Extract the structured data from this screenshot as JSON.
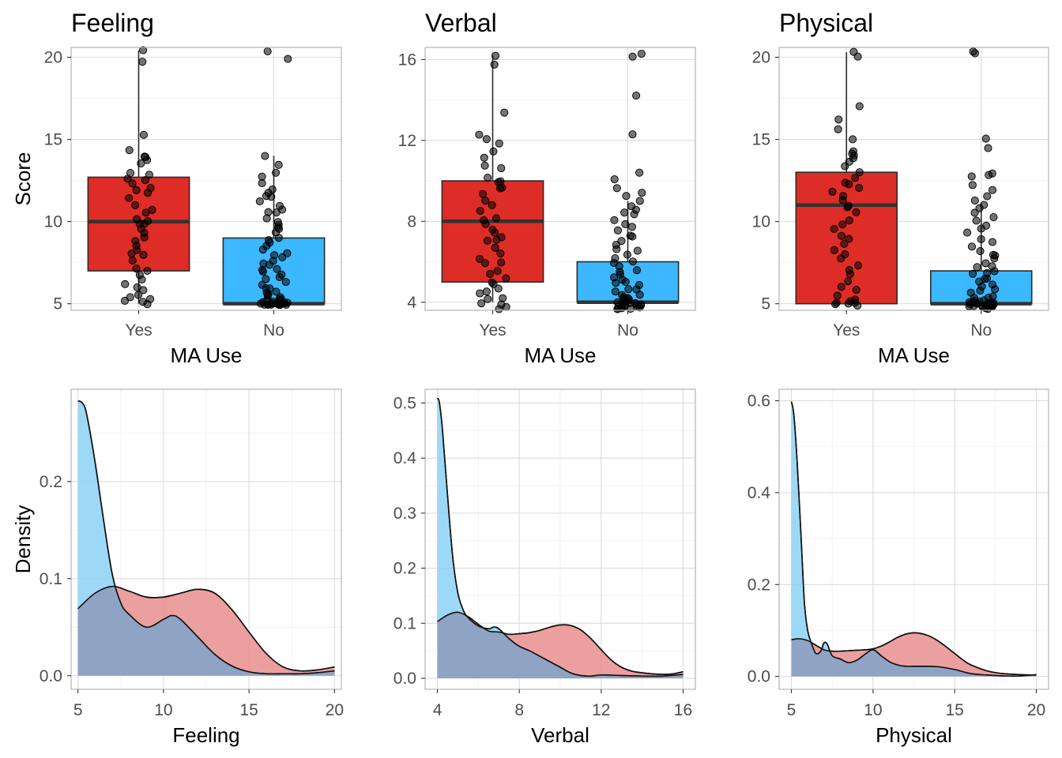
{
  "chart_data": [
    {
      "type": "box",
      "title": "Feeling",
      "xlabel": "MA Use",
      "ylabel": "Score",
      "categories": [
        "Yes",
        "No"
      ],
      "ylim": [
        4.6,
        20.6
      ],
      "yticks": [
        5,
        10,
        15,
        20
      ],
      "yticklabels": [
        "5",
        "10",
        "15",
        "20"
      ],
      "boxes": [
        {
          "category": "Yes",
          "color": "#DE2D26",
          "whisker_low": 5,
          "q1": 7,
          "median": 10,
          "q3": 12.7,
          "whisker_high": 20.4
        },
        {
          "category": "No",
          "color": "#3BB8FF",
          "whisker_low": 5,
          "q1": 5,
          "median": 5,
          "q3": 9,
          "whisker_high": 14
        }
      ],
      "points": [
        {
          "category": "Yes",
          "values": [
            20.4,
            19.8,
            15.3,
            14.4,
            14,
            13.9,
            13.7,
            13.5,
            13,
            12.9,
            12.6,
            12.5,
            12.3,
            12.1,
            11.9,
            11.7,
            11.4,
            11,
            10.7,
            10.5,
            10.2,
            10,
            9.9,
            9.8,
            9.5,
            9.3,
            9,
            8.8,
            8.6,
            8.2,
            8,
            7.9,
            7.6,
            7.1,
            7,
            6.8,
            6.5,
            6.2,
            6,
            5.8,
            5.6,
            5.4,
            5.3,
            5.2,
            5.1,
            5
          ]
        },
        {
          "category": "No",
          "values": [
            20.4,
            19.9,
            14,
            13.5,
            13,
            12.8,
            12.3,
            12,
            11.8,
            11.6,
            11.5,
            11.2,
            11,
            10.8,
            10.6,
            10.5,
            10.2,
            10,
            9.8,
            9.7,
            9.5,
            9.3,
            9,
            8.9,
            8.7,
            8.5,
            8.3,
            8.1,
            8,
            7.8,
            7.6,
            7.5,
            7.3,
            7.1,
            7,
            6.9,
            6.8,
            6.6,
            6.5,
            6.3,
            6.2,
            6,
            5.9,
            5.8,
            5.7,
            5.6,
            5.5,
            5.4,
            5.3,
            5.2,
            5.2,
            5.1,
            5.1,
            5,
            5,
            5,
            5,
            5,
            5,
            5,
            5,
            5,
            5,
            5,
            5,
            5,
            5,
            5,
            5,
            5
          ]
        }
      ]
    },
    {
      "type": "box",
      "title": "Verbal",
      "xlabel": "MA Use",
      "ylabel": "",
      "categories": [
        "Yes",
        "No"
      ],
      "ylim": [
        3.6,
        16.6
      ],
      "yticks": [
        4,
        8,
        12,
        16
      ],
      "yticklabels": [
        "4",
        "8",
        "12",
        "16"
      ],
      "boxes": [
        {
          "category": "Yes",
          "color": "#DE2D26",
          "whisker_low": 4,
          "q1": 5,
          "median": 8,
          "q3": 10,
          "whisker_high": 16.2
        },
        {
          "category": "No",
          "color": "#3BB8FF",
          "whisker_low": 4,
          "q1": 4,
          "median": 4,
          "q3": 6,
          "whisker_high": 9
        }
      ],
      "points": [
        {
          "category": "Yes",
          "values": [
            16.2,
            15.7,
            13.4,
            12.3,
            12.1,
            11.9,
            11.5,
            11.1,
            10.8,
            10.6,
            10.2,
            10,
            9.9,
            9.7,
            9.6,
            9.3,
            9,
            8.8,
            8.5,
            8.2,
            8,
            7.9,
            7.6,
            7.4,
            7.2,
            7.1,
            7,
            6.7,
            6.4,
            6.2,
            6,
            5.9,
            5.6,
            5.4,
            5.2,
            5,
            4.9,
            4.7,
            4.5,
            4.4,
            4.2,
            4.1,
            4,
            3.9,
            3.8,
            3.7
          ]
        },
        {
          "category": "No",
          "values": [
            16.3,
            16.1,
            14.2,
            12.3,
            10.4,
            10.1,
            9.6,
            9.4,
            9.2,
            9,
            8.8,
            8.6,
            8.4,
            8.3,
            8.1,
            7.9,
            7.7,
            7.5,
            7.3,
            7.2,
            7,
            6.8,
            6.6,
            6.5,
            6.4,
            6.2,
            6,
            5.9,
            5.8,
            5.6,
            5.5,
            5.4,
            5.2,
            5.1,
            5,
            4.9,
            4.8,
            4.7,
            4.6,
            4.5,
            4.4,
            4.3,
            4.3,
            4.2,
            4.2,
            4.1,
            4.1,
            4,
            4,
            4,
            4,
            4,
            3.9,
            3.9,
            3.9,
            3.8,
            3.8,
            3.8,
            3.8,
            3.7,
            3.7,
            3.7,
            3.7,
            3.7,
            3.7
          ]
        }
      ]
    },
    {
      "type": "box",
      "title": "Physical",
      "xlabel": "MA Use",
      "ylabel": "",
      "categories": [
        "Yes",
        "No"
      ],
      "ylim": [
        4.6,
        20.6
      ],
      "yticks": [
        5,
        10,
        15,
        20
      ],
      "yticklabels": [
        "5",
        "10",
        "15",
        "20"
      ],
      "boxes": [
        {
          "category": "Yes",
          "color": "#DE2D26",
          "whisker_low": 5,
          "q1": 5,
          "median": 11,
          "q3": 13,
          "whisker_high": 20.3
        },
        {
          "category": "No",
          "color": "#3BB8FF",
          "whisker_low": 5,
          "q1": 5,
          "median": 5,
          "q3": 7,
          "whisker_high": 11.1
        }
      ],
      "points": [
        {
          "category": "Yes",
          "values": [
            20.3,
            20,
            17,
            16.2,
            15.6,
            15,
            14.3,
            14.2,
            14,
            13.8,
            13.6,
            13.3,
            13,
            12.7,
            12.4,
            12.2,
            12,
            11.8,
            11.5,
            11.3,
            11,
            10.8,
            10.5,
            10,
            9.8,
            9.5,
            9.2,
            9,
            8.7,
            8.3,
            8,
            7.8,
            7.3,
            7,
            6.8,
            6.3,
            6,
            5.8,
            5.5,
            5.3,
            5.2,
            5.1,
            5,
            5,
            5,
            4.9
          ]
        },
        {
          "category": "No",
          "values": [
            20.4,
            20.3,
            15.1,
            14.4,
            13,
            12.8,
            12.7,
            12.2,
            11.9,
            11.5,
            11.3,
            11,
            10.8,
            10.5,
            10.3,
            10,
            9.8,
            9.6,
            9.3,
            9,
            8.8,
            8.5,
            8.2,
            8,
            7.9,
            7.7,
            7.5,
            7.3,
            7.2,
            7,
            6.9,
            6.8,
            6.6,
            6.5,
            6.4,
            6.2,
            6,
            5.9,
            5.8,
            5.7,
            5.5,
            5.4,
            5.3,
            5.2,
            5.2,
            5.1,
            5.1,
            5.1,
            5,
            5,
            5,
            5,
            5,
            5,
            5,
            5,
            4.9,
            4.9,
            4.9,
            4.9,
            4.8,
            4.8,
            4.8,
            4.8,
            4.8,
            4.7,
            4.7
          ]
        }
      ]
    },
    {
      "type": "area",
      "title": "",
      "xlabel": "Feeling",
      "ylabel": "Density",
      "xlim": [
        4.6,
        20.4
      ],
      "ylim": [
        -0.014,
        0.295
      ],
      "xticks": [
        5,
        10,
        15,
        20
      ],
      "xticklabels": [
        "5",
        "10",
        "15",
        "20"
      ],
      "yticks": [
        0,
        0.1,
        0.2
      ],
      "yticklabels": [
        "0.0",
        "0.1",
        "0.2"
      ],
      "series": [
        {
          "group": "Yes",
          "color": "#E88A8A",
          "x": [
            5,
            6,
            7,
            8,
            9,
            10,
            11,
            12,
            13,
            14,
            15,
            16,
            17,
            18,
            19,
            20
          ],
          "y": [
            0.069,
            0.085,
            0.092,
            0.087,
            0.081,
            0.081,
            0.085,
            0.089,
            0.085,
            0.068,
            0.045,
            0.023,
            0.009,
            0.005,
            0.006,
            0.009
          ]
        },
        {
          "group": "No",
          "color": "#87CFF5",
          "x": [
            5,
            5.25,
            5.5,
            6,
            6.5,
            7,
            7.5,
            8,
            9,
            10,
            10.5,
            11,
            12,
            13,
            14,
            15,
            16,
            17,
            18,
            19,
            20
          ],
          "y": [
            0.283,
            0.281,
            0.27,
            0.22,
            0.16,
            0.105,
            0.075,
            0.063,
            0.05,
            0.058,
            0.062,
            0.058,
            0.04,
            0.022,
            0.01,
            0.004,
            0.002,
            0.002,
            0.002,
            0.003,
            0.005
          ]
        }
      ]
    },
    {
      "type": "area",
      "title": "",
      "xlabel": "Verbal",
      "ylabel": "",
      "xlim": [
        3.4,
        16.6
      ],
      "ylim": [
        -0.02,
        0.525
      ],
      "xticks": [
        4,
        8,
        12,
        16
      ],
      "xticklabels": [
        "4",
        "8",
        "12",
        "16"
      ],
      "yticks": [
        0,
        0.1,
        0.2,
        0.3,
        0.4,
        0.5
      ],
      "yticklabels": [
        "0.0",
        "0.1",
        "0.2",
        "0.3",
        "0.4",
        "0.5"
      ],
      "series": [
        {
          "group": "Yes",
          "color": "#E88A8A",
          "x": [
            4,
            4.5,
            5,
            5.5,
            6,
            6.5,
            7,
            7.5,
            8,
            8.5,
            9,
            9.5,
            10,
            10.5,
            11,
            11.5,
            12,
            12.5,
            13,
            13.5,
            14,
            14.5,
            15,
            15.5,
            16
          ],
          "y": [
            0.103,
            0.115,
            0.12,
            0.112,
            0.098,
            0.086,
            0.084,
            0.08,
            0.081,
            0.083,
            0.087,
            0.093,
            0.097,
            0.096,
            0.088,
            0.072,
            0.052,
            0.033,
            0.02,
            0.013,
            0.01,
            0.008,
            0.007,
            0.008,
            0.012
          ]
        },
        {
          "group": "No",
          "color": "#87CFF5",
          "x": [
            4,
            4.1,
            4.25,
            4.5,
            4.75,
            5,
            5.25,
            5.5,
            6,
            6.5,
            6.75,
            7,
            7.5,
            8,
            8.5,
            9,
            9.5,
            10,
            10.5,
            11,
            11.5,
            12,
            13,
            14,
            15,
            16
          ],
          "y": [
            0.509,
            0.5,
            0.45,
            0.33,
            0.22,
            0.155,
            0.125,
            0.11,
            0.095,
            0.09,
            0.093,
            0.09,
            0.072,
            0.058,
            0.05,
            0.04,
            0.03,
            0.02,
            0.01,
            0.005,
            0.004,
            0.006,
            0.005,
            0.004,
            0.004,
            0.007
          ]
        }
      ]
    },
    {
      "type": "area",
      "title": "",
      "xlabel": "Physical",
      "ylabel": "",
      "xlim": [
        4.25,
        20.75
      ],
      "ylim": [
        -0.028,
        0.625
      ],
      "xticks": [
        5,
        10,
        15,
        20
      ],
      "xticklabels": [
        "5",
        "10",
        "15",
        "20"
      ],
      "yticks": [
        0,
        0.2,
        0.4,
        0.6
      ],
      "yticklabels": [
        "0.0",
        "0.2",
        "0.4",
        "0.6"
      ],
      "series": [
        {
          "group": "Yes",
          "color": "#E88A8A",
          "x": [
            5,
            5.5,
            6,
            6.5,
            7,
            7.5,
            8,
            8.5,
            9,
            9.5,
            10,
            10.5,
            11,
            11.5,
            12,
            12.5,
            13,
            13.5,
            14,
            14.5,
            15,
            15.5,
            16,
            17,
            18,
            19,
            20
          ],
          "y": [
            0.08,
            0.082,
            0.078,
            0.068,
            0.058,
            0.055,
            0.055,
            0.056,
            0.057,
            0.058,
            0.06,
            0.066,
            0.075,
            0.085,
            0.092,
            0.095,
            0.093,
            0.087,
            0.077,
            0.064,
            0.05,
            0.036,
            0.025,
            0.012,
            0.006,
            0.004,
            0.003
          ]
        },
        {
          "group": "No",
          "color": "#87CFF5",
          "x": [
            5,
            5.15,
            5.35,
            5.6,
            5.8,
            6,
            6.25,
            6.5,
            6.8,
            7,
            7.2,
            7.5,
            8,
            8.5,
            9,
            9.5,
            10,
            10.5,
            11,
            11.5,
            12,
            13,
            14,
            15,
            16,
            17,
            18,
            19,
            20
          ],
          "y": [
            0.598,
            0.57,
            0.47,
            0.3,
            0.16,
            0.1,
            0.07,
            0.05,
            0.055,
            0.073,
            0.07,
            0.045,
            0.038,
            0.03,
            0.035,
            0.048,
            0.058,
            0.045,
            0.032,
            0.025,
            0.022,
            0.022,
            0.021,
            0.015,
            0.006,
            0.003,
            0.001,
            0.001,
            0.004
          ]
        }
      ]
    }
  ]
}
